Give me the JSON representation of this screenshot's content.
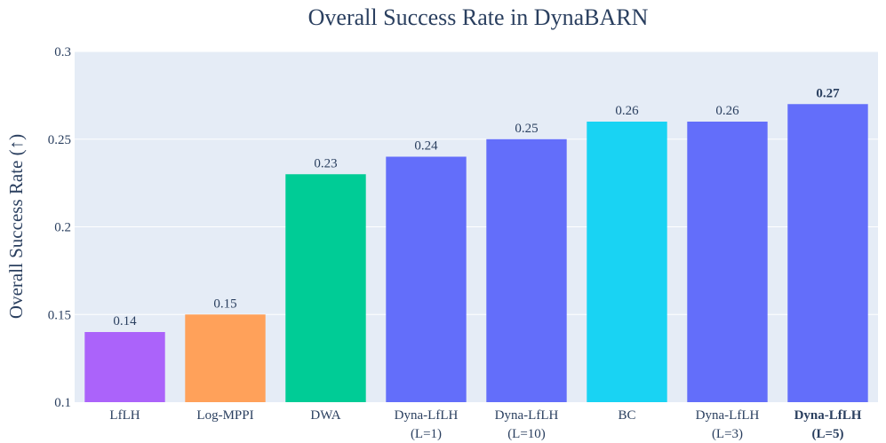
{
  "chart_data": {
    "type": "bar",
    "title": "Overall Success Rate in DynaBARN",
    "xlabel": "",
    "ylabel": "Overall Success Rate (↑)",
    "ylim": [
      0.1,
      0.3
    ],
    "yticks": [
      0.1,
      0.15,
      0.2,
      0.25,
      0.3
    ],
    "ytick_labels": [
      "0.1",
      "0.15",
      "0.2",
      "0.25",
      "0.3"
    ],
    "grid": true,
    "bars": [
      {
        "label": [
          "LfLH"
        ],
        "value": 0.14,
        "value_label": "0.14",
        "color": "#ab63fa",
        "bold": false
      },
      {
        "label": [
          "Log-MPPI"
        ],
        "value": 0.15,
        "value_label": "0.15",
        "color": "#ffa15a",
        "bold": false
      },
      {
        "label": [
          "DWA"
        ],
        "value": 0.23,
        "value_label": "0.23",
        "color": "#00cc96",
        "bold": false
      },
      {
        "label": [
          "Dyna-LfLH",
          "(L=1)"
        ],
        "value": 0.24,
        "value_label": "0.24",
        "color": "#636efa",
        "bold": false
      },
      {
        "label": [
          "Dyna-LfLH",
          "(L=10)"
        ],
        "value": 0.25,
        "value_label": "0.25",
        "color": "#636efa",
        "bold": false
      },
      {
        "label": [
          "BC"
        ],
        "value": 0.26,
        "value_label": "0.26",
        "color": "#19d3f3",
        "bold": false
      },
      {
        "label": [
          "Dyna-LfLH",
          "(L=3)"
        ],
        "value": 0.26,
        "value_label": "0.26",
        "color": "#636efa",
        "bold": false
      },
      {
        "label": [
          "Dyna-LfLH",
          "(L=5)"
        ],
        "value": 0.27,
        "value_label": "0.27",
        "color": "#636efa",
        "bold": true
      }
    ],
    "colors": {
      "plot_bg": "#e5ecf6",
      "grid": "#ffffff",
      "text": "#2a3f5f"
    }
  }
}
